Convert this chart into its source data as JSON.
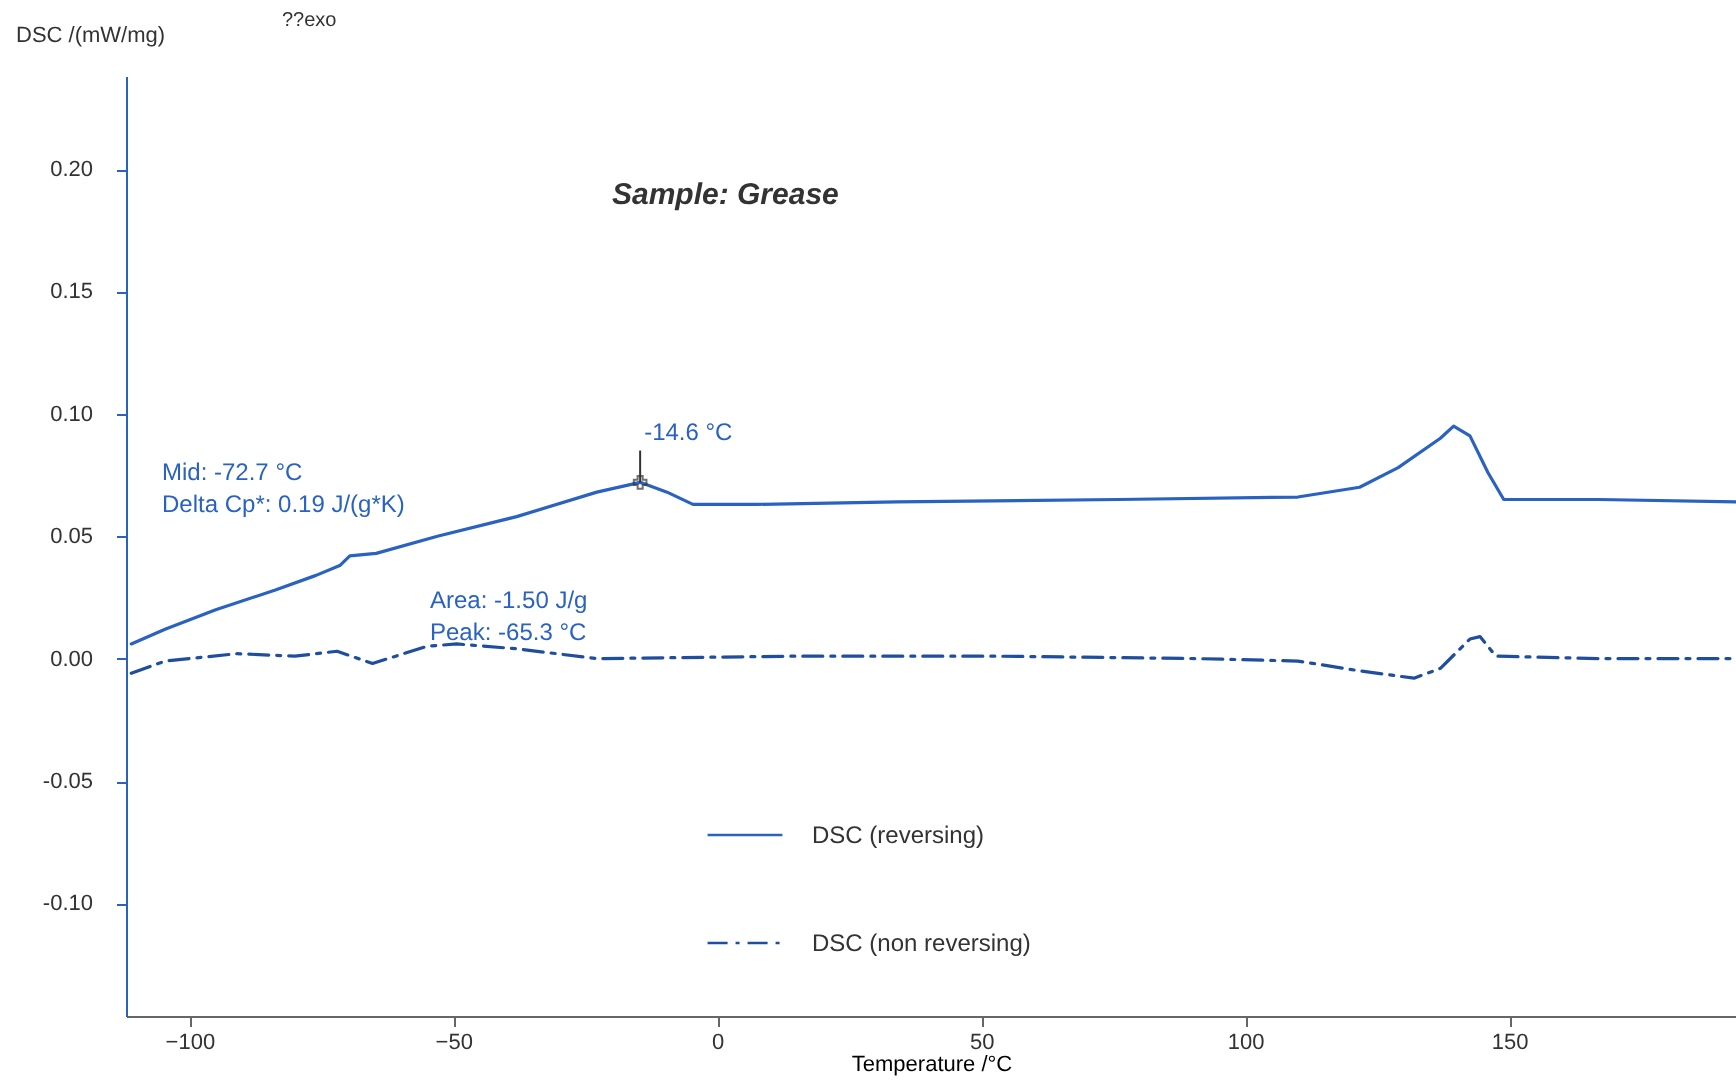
{
  "chart_data": {
    "type": "line",
    "title": "Sample: Grease",
    "xlabel": "Temperature /°C",
    "ylabel": "DSC /(mW/mg)",
    "xlim": [
      -112,
      193
    ],
    "xticks": [
      -100,
      -50,
      0,
      50,
      100,
      150
    ],
    "ylim": [
      -0.146,
      0.238
    ],
    "yticks": [
      {
        "value": -0.1,
        "label": "-0.10"
      },
      {
        "value": -0.05,
        "label": "-0.05"
      },
      {
        "value": 0,
        "label": "0.00"
      },
      {
        "value": 0.05,
        "label": "0.05"
      },
      {
        "value": 0.1,
        "label": "0.10"
      },
      {
        "value": 0.15,
        "label": "0.15"
      },
      {
        "value": 0.2,
        "label": "0.20"
      }
    ],
    "grid": false,
    "legend": "bottom",
    "annotations": [
      "??exo",
      "Mid:          -72.7 °C",
      "Delta Cp*:     0.19 J/(g*K)",
      {
        "text": "-14.6 °C",
        "x": -14.6,
        "y": 0.072
      },
      "Area:     -1.50 J/g",
      "Peak:  -65.3 °C"
    ],
    "series": [
      {
        "name": "DSC (reversing)",
        "color": "#2a62c0",
        "line_style": "solid",
        "x": [
          -111,
          -104.6,
          -95,
          -83.7,
          -76,
          -71.5,
          -69.6,
          -64.6,
          -53,
          -38,
          -22.8,
          -14.6,
          -9.5,
          -4.6,
          7.6,
          34,
          76,
          110,
          121.7,
          129,
          137,
          139.5,
          142.6,
          146,
          149,
          167,
          193
        ],
        "values": [
          0.006,
          0.012,
          0.02,
          0.028,
          0.034,
          0.038,
          0.042,
          0.043,
          0.05,
          0.058,
          0.068,
          0.072,
          0.068,
          0.063,
          0.063,
          0.064,
          0.065,
          0.066,
          0.07,
          0.078,
          0.09,
          0.095,
          0.091,
          0.076,
          0.065,
          0.065,
          0.064
        ]
      },
      {
        "name": "DSC (non reversing)",
        "color": "#1f4e9e",
        "line_style": "dashed",
        "x": [
          -111,
          -104.6,
          -91,
          -80,
          -72,
          -65.3,
          -55,
          -49.4,
          -38,
          -22.8,
          15,
          53,
          91,
          110,
          121.7,
          132,
          137,
          142.6,
          144.5,
          147.5,
          167,
          193
        ],
        "values": [
          -0.006,
          -0.001,
          0.002,
          0.001,
          0.003,
          -0.002,
          0.005,
          0.006,
          0.004,
          0,
          0.001,
          0.001,
          0,
          -0.001,
          -0.005,
          -0.008,
          -0.004,
          0.008,
          0.009,
          0.001,
          0,
          0
        ]
      }
    ]
  }
}
